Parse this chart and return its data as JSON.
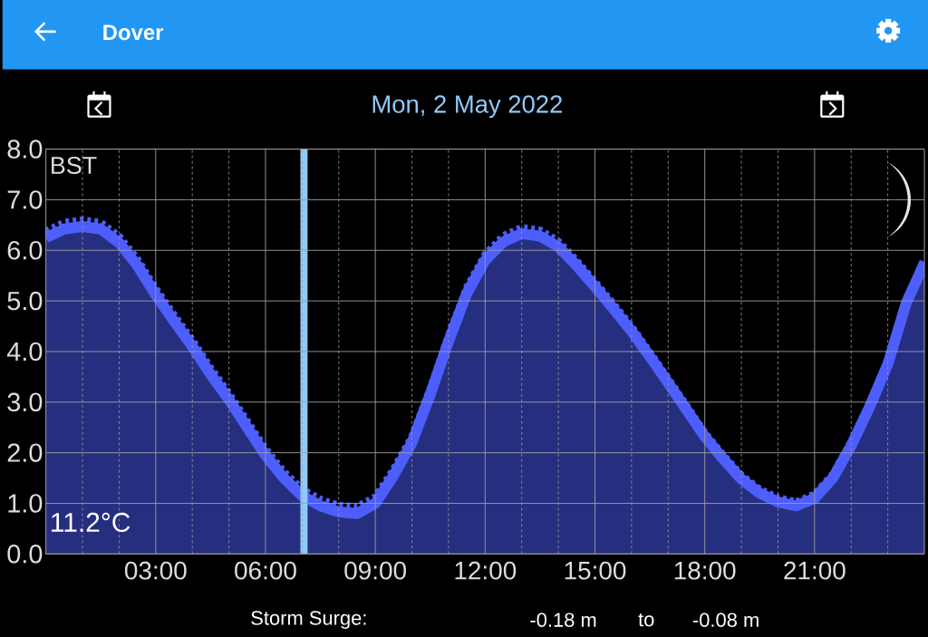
{
  "chart_data": {
    "type": "area",
    "title": "Dover",
    "subtitle": "Mon, 2 May 2022",
    "annotations": [
      "BST",
      "11.2°C",
      "Storm Surge:",
      "-0.18 m",
      "to",
      "-0.08 m"
    ],
    "x": [
      0,
      0.5,
      1,
      1.5,
      2,
      2.5,
      3,
      3.5,
      4,
      4.5,
      5,
      5.5,
      6,
      6.5,
      7,
      7.5,
      8,
      8.5,
      9,
      9.5,
      10,
      10.5,
      11,
      11.5,
      12,
      12.5,
      13,
      13.5,
      14,
      14.5,
      15,
      15.5,
      16,
      16.5,
      17,
      17.5,
      18,
      18.5,
      19,
      19.5,
      20,
      20.5,
      21,
      21.5,
      22,
      22.5,
      23,
      23.5,
      24
    ],
    "series": [
      {
        "type": "line",
        "line_style": "dotted",
        "color": "#4d5efd",
        "values": [
          6.38,
          6.55,
          6.6,
          6.55,
          6.28,
          5.83,
          5.25,
          4.73,
          4.23,
          3.68,
          3.18,
          2.63,
          2.08,
          1.63,
          1.28,
          1.08,
          0.96,
          0.93,
          1.13,
          1.68,
          2.32,
          3.27,
          4.32,
          5.27,
          5.92,
          6.29,
          6.45,
          6.4,
          6.18,
          5.8,
          5.38,
          4.95,
          4.5,
          3.99,
          3.47,
          2.94,
          2.4,
          1.96,
          1.56,
          1.28,
          1.11,
          1.03,
          1.18,
          1.58,
          2.22,
          2.98,
          3.83,
          5.03,
          5.83
        ]
      },
      {
        "line_style": "solid",
        "color": "#4d5efd",
        "values": [
          6.25,
          6.42,
          6.47,
          6.42,
          6.15,
          5.7,
          5.12,
          4.6,
          4.1,
          3.55,
          3.05,
          2.5,
          1.95,
          1.5,
          1.15,
          0.95,
          0.83,
          0.8,
          1.0,
          1.55,
          2.2,
          3.15,
          4.2,
          5.15,
          5.8,
          6.17,
          6.33,
          6.28,
          6.07,
          5.7,
          5.28,
          4.85,
          4.4,
          3.9,
          3.38,
          2.85,
          2.32,
          1.88,
          1.48,
          1.2,
          1.03,
          0.95,
          1.1,
          1.5,
          2.14,
          2.9,
          3.75,
          4.95,
          5.75
        ]
      }
    ],
    "xlim": [
      0,
      24
    ],
    "ylim": [
      0,
      8
    ],
    "xticks": [
      {
        "value": 1,
        "label": null
      },
      {
        "value": 2,
        "label": null
      },
      {
        "value": 3,
        "label": "03:00"
      },
      {
        "value": 4,
        "label": null
      },
      {
        "value": 5,
        "label": null
      },
      {
        "value": 6,
        "label": "06:00"
      },
      {
        "value": 7,
        "label": null
      },
      {
        "value": 8,
        "label": null
      },
      {
        "value": 9,
        "label": "09:00"
      },
      {
        "value": 10,
        "label": null
      },
      {
        "value": 11,
        "label": null
      },
      {
        "value": 12,
        "label": "12:00"
      },
      {
        "value": 13,
        "label": null
      },
      {
        "value": 14,
        "label": null
      },
      {
        "value": 15,
        "label": "15:00"
      },
      {
        "value": 16,
        "label": null
      },
      {
        "value": 17,
        "label": null
      },
      {
        "value": 18,
        "label": "18:00"
      },
      {
        "value": 19,
        "label": null
      },
      {
        "value": 20,
        "label": null
      },
      {
        "value": 21,
        "label": "21:00"
      },
      {
        "value": 22,
        "label": null
      },
      {
        "value": 23,
        "label": null
      }
    ],
    "yticks": [
      {
        "value": 0,
        "label": "0.0"
      },
      {
        "value": 1,
        "label": "1.0"
      },
      {
        "value": 2,
        "label": "2.0"
      },
      {
        "value": 3,
        "label": "3.0"
      },
      {
        "value": 4,
        "label": "4.0"
      },
      {
        "value": 5,
        "label": "5.0"
      },
      {
        "value": 6,
        "label": "6.0"
      },
      {
        "value": 7,
        "label": "7.0"
      },
      {
        "value": 8,
        "label": "8.0"
      }
    ],
    "grid": true,
    "ref_lines": [
      {
        "axis": "x",
        "value": 7.05,
        "color": "#90caf9"
      }
    ]
  }
}
